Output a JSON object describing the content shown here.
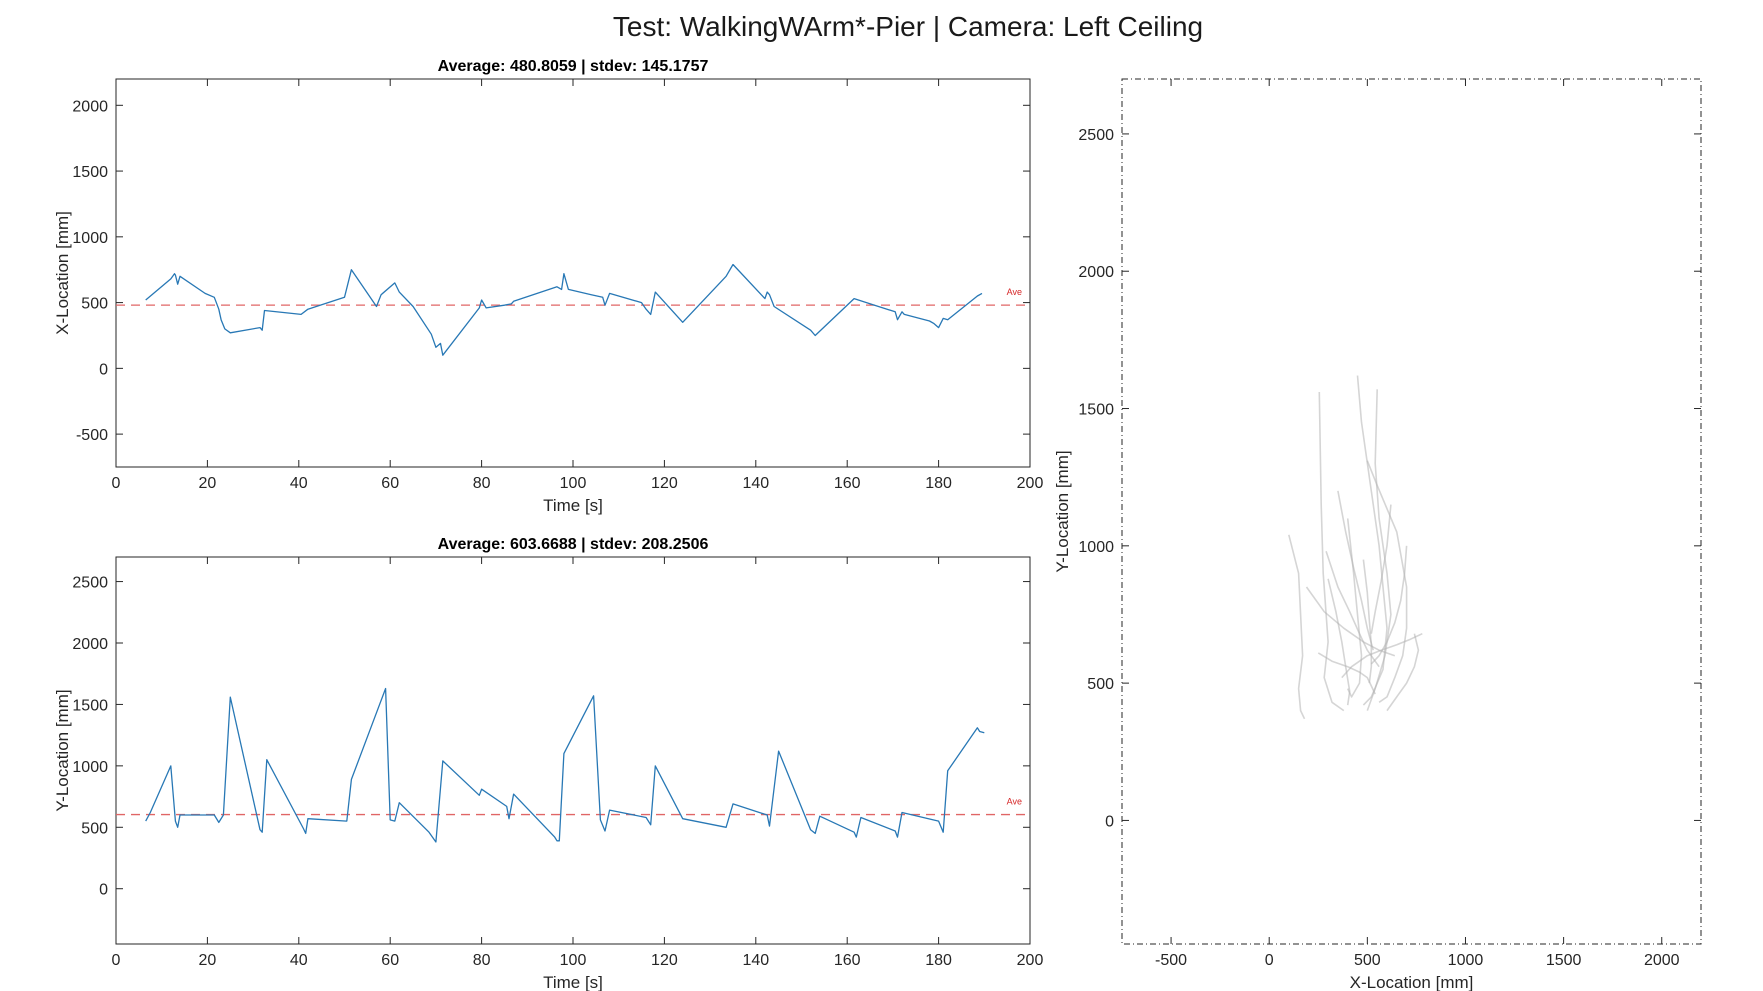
{
  "figure": {
    "title": "Test: WalkingWArm*-Pier  |  Camera: Left Ceiling"
  },
  "colors": {
    "series": "#2878b5",
    "average": "#e06666",
    "trajectory": "#b3b3b3",
    "axes": "#262626"
  },
  "chart_data": [
    {
      "type": "line",
      "title": "Average: 480.8059  |  stdev: 145.1757",
      "xlabel": "Time [s]",
      "ylabel": "X-Location [mm]",
      "xlim": [
        0,
        200
      ],
      "ylim": [
        -750,
        2200
      ],
      "xticks": [
        0,
        20,
        40,
        60,
        80,
        100,
        120,
        140,
        160,
        180,
        200
      ],
      "yticks": [
        -500,
        0,
        500,
        1000,
        1500,
        2000
      ],
      "average": 480.8059,
      "average_label": "Ave",
      "series": [
        {
          "x": [
            6.5,
            12,
            12.8,
            13,
            13.5,
            14,
            19.5,
            21.5,
            22.5,
            23,
            23.8,
            25,
            31.5,
            32,
            32.5,
            40.5,
            42,
            50,
            51.5,
            57,
            58,
            61,
            62,
            65,
            69,
            70,
            71,
            71.5,
            79.5,
            80,
            81,
            85,
            86.5,
            87,
            96.5,
            97.5,
            98,
            99,
            104,
            106.5,
            107,
            108,
            115,
            116,
            117,
            118,
            124,
            133.5,
            135,
            142,
            142.5,
            143,
            144,
            152,
            153,
            161.5,
            166,
            170.5,
            171,
            172,
            172.5,
            178,
            179,
            180,
            181,
            182,
            188.5,
            189.5
          ],
          "y": [
            520,
            680,
            720,
            710,
            640,
            700,
            570,
            540,
            450,
            370,
            300,
            270,
            310,
            290,
            440,
            410,
            450,
            540,
            750,
            470,
            560,
            650,
            580,
            470,
            260,
            160,
            190,
            100,
            460,
            520,
            460,
            480,
            490,
            510,
            620,
            600,
            720,
            600,
            560,
            540,
            480,
            570,
            500,
            450,
            410,
            580,
            350,
            700,
            790,
            530,
            580,
            560,
            470,
            290,
            250,
            530,
            480,
            430,
            370,
            430,
            410,
            360,
            340,
            310,
            380,
            370,
            550,
            570
          ]
        }
      ]
    },
    {
      "type": "line",
      "title": "Average: 603.6688  |  stdev: 208.2506",
      "xlabel": "Time [s]",
      "ylabel": "Y-Location [mm]",
      "xlim": [
        0,
        200
      ],
      "ylim": [
        -450,
        2700
      ],
      "xticks": [
        0,
        20,
        40,
        60,
        80,
        100,
        120,
        140,
        160,
        180,
        200
      ],
      "yticks": [
        0,
        500,
        1000,
        1500,
        2000,
        2500
      ],
      "average": 603.6688,
      "average_label": "Ave",
      "series": [
        {
          "x": [
            6.5,
            7.5,
            12,
            13,
            13.5,
            14,
            21.5,
            22.5,
            23.5,
            25,
            31.5,
            32,
            33,
            41,
            41.5,
            42,
            50.5,
            51.5,
            59,
            60,
            61,
            62,
            68.5,
            70,
            71.5,
            79.5,
            80,
            85.5,
            86,
            87,
            96,
            96.5,
            97,
            98,
            104.5,
            106,
            107,
            108,
            116,
            117,
            118,
            124,
            133.5,
            135,
            142.5,
            143,
            145,
            152,
            153,
            154,
            161.5,
            162,
            163,
            170.5,
            171,
            172,
            180,
            181,
            182,
            188.5,
            189,
            190
          ],
          "y": [
            550,
            620,
            1000,
            550,
            500,
            600,
            600,
            540,
            600,
            1560,
            480,
            460,
            1050,
            490,
            450,
            570,
            550,
            890,
            1630,
            560,
            550,
            700,
            460,
            380,
            1040,
            760,
            810,
            670,
            570,
            770,
            420,
            390,
            390,
            1100,
            1570,
            560,
            470,
            640,
            580,
            520,
            1000,
            570,
            500,
            690,
            600,
            510,
            1120,
            480,
            450,
            590,
            460,
            420,
            580,
            470,
            420,
            620,
            550,
            460,
            960,
            1310,
            1280,
            1270
          ]
        }
      ]
    },
    {
      "type": "line",
      "title": "",
      "xlabel": "X-Location [mm]",
      "ylabel": "Y-Location [mm]",
      "xlim": [
        -750,
        2200
      ],
      "ylim": [
        -450,
        2700
      ],
      "xticks": [
        -500,
        0,
        500,
        1000,
        1500,
        2000
      ],
      "yticks": [
        0,
        500,
        1000,
        1500,
        2000,
        2500
      ],
      "series": [
        {
          "x": [
            255,
            265,
            275,
            300,
            280,
            320,
            380
          ],
          "y": [
            1560,
            1150,
            900,
            650,
            520,
            430,
            400
          ]
        },
        {
          "x": [
            450,
            470,
            520,
            560,
            580,
            600,
            580,
            520,
            480
          ],
          "y": [
            1620,
            1450,
            1200,
            1000,
            850,
            700,
            550,
            450,
            420
          ]
        },
        {
          "x": [
            550,
            540,
            560,
            600,
            620,
            590,
            540,
            500
          ],
          "y": [
            1570,
            1300,
            1100,
            900,
            750,
            600,
            480,
            400
          ]
        },
        {
          "x": [
            100,
            150,
            160,
            170,
            150,
            160,
            180
          ],
          "y": [
            1040,
            900,
            750,
            600,
            480,
            400,
            370
          ]
        },
        {
          "x": [
            500,
            550,
            650,
            700,
            700,
            680,
            640,
            600,
            560
          ],
          "y": [
            1310,
            1220,
            1050,
            850,
            700,
            600,
            520,
            450,
            430
          ]
        },
        {
          "x": [
            400,
            430,
            450,
            470,
            460,
            420,
            400
          ],
          "y": [
            1100,
            900,
            750,
            600,
            500,
            450,
            480
          ]
        },
        {
          "x": [
            290,
            350,
            410,
            460,
            500,
            560
          ],
          "y": [
            980,
            850,
            760,
            680,
            620,
            560
          ]
        },
        {
          "x": [
            190,
            280,
            380,
            480,
            560,
            640
          ],
          "y": [
            850,
            760,
            700,
            650,
            620,
            600
          ]
        },
        {
          "x": [
            370,
            420,
            500,
            570,
            650,
            720,
            780
          ],
          "y": [
            520,
            560,
            600,
            620,
            640,
            660,
            680
          ]
        },
        {
          "x": [
            250,
            320,
            400,
            460,
            500,
            520,
            540
          ],
          "y": [
            610,
            580,
            560,
            540,
            520,
            490,
            460
          ]
        },
        {
          "x": [
            600,
            640,
            700,
            740,
            760,
            740
          ],
          "y": [
            400,
            440,
            500,
            560,
            620,
            680
          ]
        },
        {
          "x": [
            300,
            340,
            370,
            390,
            410,
            400
          ],
          "y": [
            880,
            760,
            650,
            560,
            470,
            420
          ]
        },
        {
          "x": [
            480,
            500,
            510,
            520,
            520,
            510
          ],
          "y": [
            950,
            830,
            730,
            640,
            560,
            500
          ]
        },
        {
          "x": [
            700,
            690,
            670,
            640,
            600,
            560,
            520
          ],
          "y": [
            1000,
            900,
            800,
            720,
            650,
            600,
            570
          ]
        },
        {
          "x": [
            350,
            390,
            430,
            470,
            500,
            530
          ],
          "y": [
            1200,
            1050,
            920,
            800,
            700,
            620
          ]
        },
        {
          "x": [
            620,
            600,
            570,
            540,
            520
          ],
          "y": [
            1150,
            1000,
            870,
            760,
            680
          ]
        }
      ]
    }
  ]
}
